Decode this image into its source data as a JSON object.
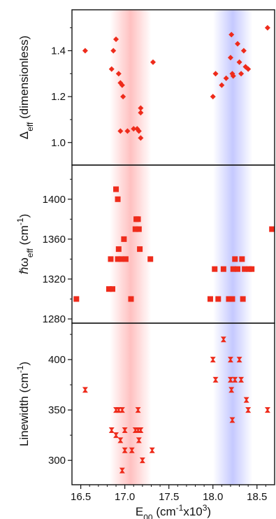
{
  "colors": {
    "marker": "#ee2b1b",
    "band_red": "#ff3b3b",
    "band_blue": "#4a55ff",
    "axis": "#111111",
    "background": "#ffffff"
  },
  "chart_data": [
    {
      "type": "scatter",
      "panel": "top",
      "marker": "diamond",
      "ylabel": {
        "main": "Δ",
        "sub": "eff",
        "rest": " (dimensionless)"
      },
      "ylim": [
        0.92,
        1.56
      ],
      "yticks": [
        1.0,
        1.2,
        1.4
      ],
      "ytick_labels": [
        "1.0",
        "1.2",
        "1.4"
      ],
      "xlim": [
        16.4,
        18.7
      ],
      "grid": false,
      "series": [
        {
          "points": [
            {
              "x": 16.55,
              "y": 1.4
            },
            {
              "x": 16.85,
              "y": 1.32
            },
            {
              "x": 16.87,
              "y": 1.4
            },
            {
              "x": 16.9,
              "y": 1.45
            },
            {
              "x": 16.93,
              "y": 1.3
            },
            {
              "x": 16.95,
              "y": 1.26
            },
            {
              "x": 16.97,
              "y": 1.25
            },
            {
              "x": 16.98,
              "y": 1.2
            },
            {
              "x": 16.95,
              "y": 1.05
            },
            {
              "x": 17.03,
              "y": 1.05
            },
            {
              "x": 17.1,
              "y": 1.06
            },
            {
              "x": 17.14,
              "y": 1.06
            },
            {
              "x": 17.16,
              "y": 1.05
            },
            {
              "x": 17.18,
              "y": 1.13
            },
            {
              "x": 17.18,
              "y": 1.15
            },
            {
              "x": 17.18,
              "y": 1.02
            },
            {
              "x": 17.32,
              "y": 1.35
            },
            {
              "x": 18.0,
              "y": 1.2
            },
            {
              "x": 18.03,
              "y": 1.3
            },
            {
              "x": 18.1,
              "y": 1.25
            },
            {
              "x": 18.15,
              "y": 1.28
            },
            {
              "x": 18.2,
              "y": 1.37
            },
            {
              "x": 18.21,
              "y": 1.47
            },
            {
              "x": 18.22,
              "y": 1.3
            },
            {
              "x": 18.23,
              "y": 1.29
            },
            {
              "x": 18.28,
              "y": 1.43
            },
            {
              "x": 18.3,
              "y": 1.35
            },
            {
              "x": 18.32,
              "y": 1.3
            },
            {
              "x": 18.35,
              "y": 1.4
            },
            {
              "x": 18.37,
              "y": 1.33
            },
            {
              "x": 18.4,
              "y": 1.32
            },
            {
              "x": 18.62,
              "y": 1.5
            }
          ]
        }
      ]
    },
    {
      "type": "scatter",
      "panel": "middle",
      "marker": "square",
      "ylabel": {
        "main": "ℏω",
        "sub": "eff",
        "rest": " (cm",
        "sup": "-1",
        "close": ")"
      },
      "ylim": [
        1280,
        1430
      ],
      "yticks": [
        1280,
        1320,
        1360,
        1400
      ],
      "ytick_labels": [
        "1280",
        "1320",
        "1360",
        "1400"
      ],
      "xlim": [
        16.4,
        18.7
      ],
      "grid": false,
      "series": [
        {
          "points": [
            {
              "x": 16.45,
              "y": 1300
            },
            {
              "x": 16.82,
              "y": 1310
            },
            {
              "x": 16.84,
              "y": 1340
            },
            {
              "x": 16.86,
              "y": 1310
            },
            {
              "x": 16.9,
              "y": 1410
            },
            {
              "x": 16.92,
              "y": 1400
            },
            {
              "x": 16.92,
              "y": 1340
            },
            {
              "x": 16.93,
              "y": 1350
            },
            {
              "x": 16.96,
              "y": 1340
            },
            {
              "x": 16.99,
              "y": 1360
            },
            {
              "x": 17.01,
              "y": 1340
            },
            {
              "x": 17.07,
              "y": 1300
            },
            {
              "x": 17.12,
              "y": 1370
            },
            {
              "x": 17.13,
              "y": 1380
            },
            {
              "x": 17.15,
              "y": 1380
            },
            {
              "x": 17.16,
              "y": 1370
            },
            {
              "x": 17.17,
              "y": 1350
            },
            {
              "x": 17.29,
              "y": 1340
            },
            {
              "x": 17.97,
              "y": 1300
            },
            {
              "x": 18.02,
              "y": 1330
            },
            {
              "x": 18.06,
              "y": 1300
            },
            {
              "x": 18.12,
              "y": 1330
            },
            {
              "x": 18.18,
              "y": 1300
            },
            {
              "x": 18.22,
              "y": 1300
            },
            {
              "x": 18.23,
              "y": 1330
            },
            {
              "x": 18.25,
              "y": 1340
            },
            {
              "x": 18.28,
              "y": 1330
            },
            {
              "x": 18.33,
              "y": 1340
            },
            {
              "x": 18.34,
              "y": 1300
            },
            {
              "x": 18.36,
              "y": 1330
            },
            {
              "x": 18.41,
              "y": 1330
            },
            {
              "x": 18.44,
              "y": 1330
            },
            {
              "x": 18.67,
              "y": 1370
            }
          ]
        }
      ]
    },
    {
      "type": "scatter",
      "panel": "bottom",
      "marker": "hourglass",
      "ylabel": {
        "main": "Linewidth (cm",
        "sup": "-1",
        "close": ")"
      },
      "ylim": [
        280,
        432
      ],
      "yticks": [
        300,
        350,
        400
      ],
      "ytick_labels": [
        "300",
        "350",
        "400"
      ],
      "xlim": [
        16.4,
        18.7
      ],
      "xticks": [
        16.5,
        17.0,
        17.5,
        18.0,
        18.5
      ],
      "xtick_labels": [
        "16.5",
        "17.0",
        "17.5",
        "18.0",
        "18.5"
      ],
      "xlabel": {
        "main": "E",
        "sub": "00",
        "rest": " (cm",
        "sup": "-1",
        "rest2": "x10",
        "sup2": "3",
        "close": ")"
      },
      "grid": false,
      "series": [
        {
          "points": [
            {
              "x": 16.55,
              "y": 370
            },
            {
              "x": 16.85,
              "y": 330
            },
            {
              "x": 16.9,
              "y": 350
            },
            {
              "x": 16.9,
              "y": 325
            },
            {
              "x": 16.93,
              "y": 350
            },
            {
              "x": 16.95,
              "y": 320
            },
            {
              "x": 16.97,
              "y": 350
            },
            {
              "x": 16.97,
              "y": 290
            },
            {
              "x": 17.0,
              "y": 310
            },
            {
              "x": 17.0,
              "y": 330
            },
            {
              "x": 17.08,
              "y": 310
            },
            {
              "x": 17.12,
              "y": 330
            },
            {
              "x": 17.15,
              "y": 350
            },
            {
              "x": 17.15,
              "y": 330
            },
            {
              "x": 17.16,
              "y": 320
            },
            {
              "x": 17.18,
              "y": 330
            },
            {
              "x": 17.2,
              "y": 300
            },
            {
              "x": 17.31,
              "y": 310
            },
            {
              "x": 18.0,
              "y": 400
            },
            {
              "x": 18.03,
              "y": 380
            },
            {
              "x": 18.12,
              "y": 420
            },
            {
              "x": 18.2,
              "y": 400
            },
            {
              "x": 18.2,
              "y": 380
            },
            {
              "x": 18.21,
              "y": 370
            },
            {
              "x": 18.22,
              "y": 340
            },
            {
              "x": 18.25,
              "y": 380
            },
            {
              "x": 18.3,
              "y": 400
            },
            {
              "x": 18.32,
              "y": 380
            },
            {
              "x": 18.38,
              "y": 360
            },
            {
              "x": 18.4,
              "y": 350
            },
            {
              "x": 18.62,
              "y": 350
            }
          ]
        }
      ]
    }
  ],
  "bands": [
    {
      "color_key": "band_red",
      "x_from": 16.83,
      "x_to": 17.3,
      "center": 17.065
    },
    {
      "color_key": "band_blue",
      "x_from": 18.0,
      "x_to": 18.45,
      "center": 18.225
    }
  ]
}
